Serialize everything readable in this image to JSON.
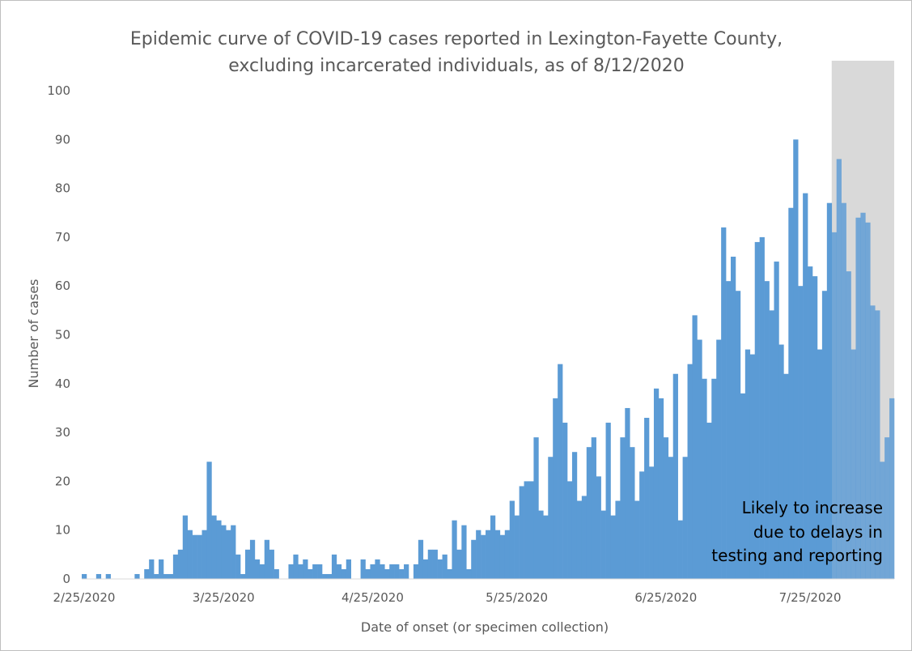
{
  "chart_data": {
    "type": "bar",
    "title": [
      "Epidemic curve of COVID-19 cases reported in Lexington-Fayette County,",
      "excluding incarcerated individuals, as of 8/12/2020"
    ],
    "xlabel": "Date of onset (or specimen collection)",
    "ylabel": "Number of cases",
    "ylim": [
      0,
      100
    ],
    "yticks": [
      "0",
      "10",
      "20",
      "30",
      "40",
      "50",
      "60",
      "70",
      "80",
      "90",
      "100"
    ],
    "start_date": "2020-02-25",
    "xtick_labels": [
      {
        "label": "2/25/2020",
        "date": "2020-02-25"
      },
      {
        "label": "3/25/2020",
        "date": "2020-03-25"
      },
      {
        "label": "4/25/2020",
        "date": "2020-04-25"
      },
      {
        "label": "5/25/2020",
        "date": "2020-05-25"
      },
      {
        "label": "6/25/2020",
        "date": "2020-06-25"
      },
      {
        "label": "7/25/2020",
        "date": "2020-07-25"
      }
    ],
    "grid": false,
    "legend": "none",
    "bar_color": "#5b9bd5",
    "shade_color": "#d9d9d9",
    "shaded_start": "2020-07-30",
    "shaded_end": "2020-08-12",
    "annotation": [
      "Likely to increase",
      "due to delays in",
      "testing and reporting"
    ],
    "values": [
      1,
      0,
      0,
      1,
      0,
      1,
      0,
      0,
      0,
      0,
      0,
      1,
      0,
      2,
      4,
      1,
      4,
      1,
      1,
      5,
      6,
      13,
      10,
      9,
      9,
      10,
      24,
      13,
      12,
      11,
      10,
      11,
      5,
      1,
      6,
      8,
      4,
      3,
      8,
      6,
      2,
      0,
      0,
      3,
      5,
      3,
      4,
      2,
      3,
      3,
      1,
      1,
      5,
      3,
      2,
      4,
      0,
      0,
      4,
      2,
      3,
      4,
      3,
      2,
      3,
      3,
      2,
      3,
      0,
      3,
      8,
      4,
      6,
      6,
      4,
      5,
      2,
      12,
      6,
      11,
      2,
      8,
      10,
      9,
      10,
      13,
      10,
      9,
      10,
      16,
      13,
      19,
      20,
      20,
      29,
      14,
      13,
      25,
      37,
      44,
      32,
      20,
      26,
      16,
      17,
      27,
      29,
      21,
      14,
      32,
      13,
      16,
      29,
      35,
      27,
      16,
      22,
      33,
      23,
      39,
      37,
      29,
      25,
      42,
      12,
      25,
      44,
      54,
      49,
      41,
      32,
      41,
      49,
      72,
      61,
      66,
      59,
      38,
      47,
      46,
      69,
      70,
      61,
      55,
      65,
      48,
      42,
      76,
      90,
      60,
      79,
      64,
      62,
      47,
      59,
      77,
      71,
      86,
      77,
      63,
      47,
      74,
      75,
      73,
      56,
      55,
      24,
      29,
      37
    ]
  }
}
